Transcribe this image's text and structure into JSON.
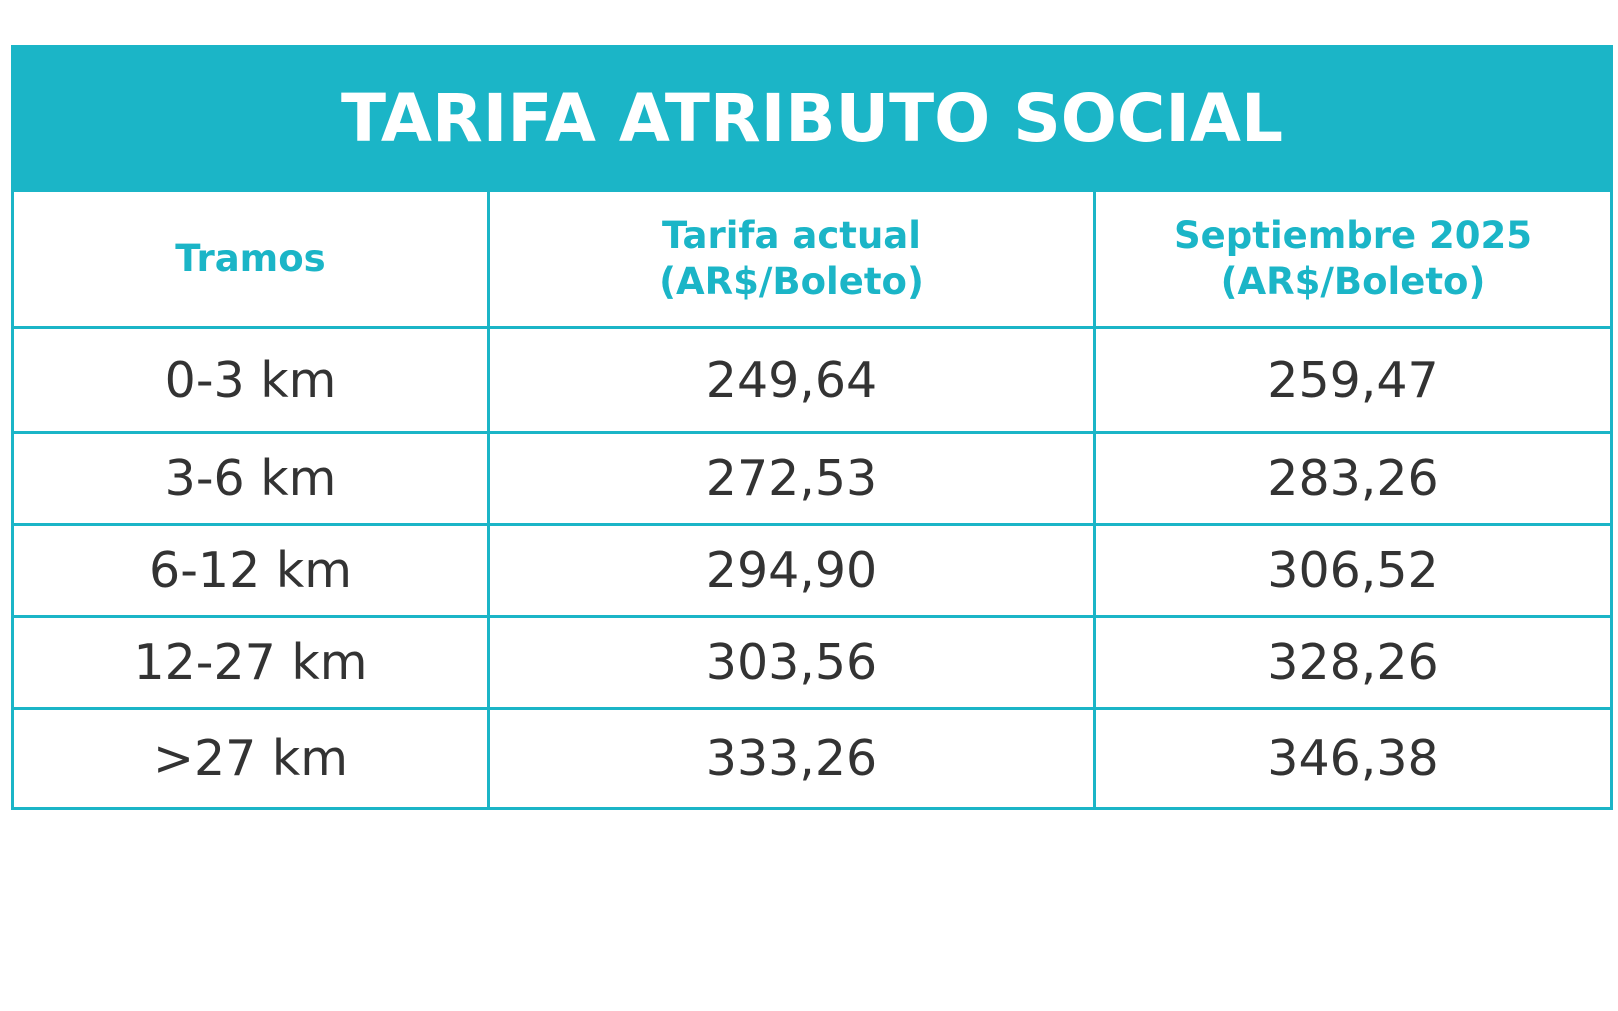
{
  "table": {
    "title": "TARIFA ATRIBUTO SOCIAL",
    "headers": [
      {
        "line1": "Tramos",
        "line2": ""
      },
      {
        "line1": "Tarifa actual",
        "line2": "(AR$/Boleto)"
      },
      {
        "line1": "Septiembre 2025",
        "line2": "(AR$/Boleto)"
      }
    ],
    "rows": [
      [
        "0-3 km",
        "249,64",
        "259,47"
      ],
      [
        "3-6 km",
        "272,53",
        "283,26"
      ],
      [
        "6-12 km",
        "294,90",
        "306,52"
      ],
      [
        "12-27 km",
        "303,56",
        "328,26"
      ],
      [
        ">27 km",
        "333,26",
        "346,38"
      ]
    ]
  },
  "colors": {
    "accent": "#1bb5c7",
    "text": "#333333",
    "background": "#ffffff"
  }
}
